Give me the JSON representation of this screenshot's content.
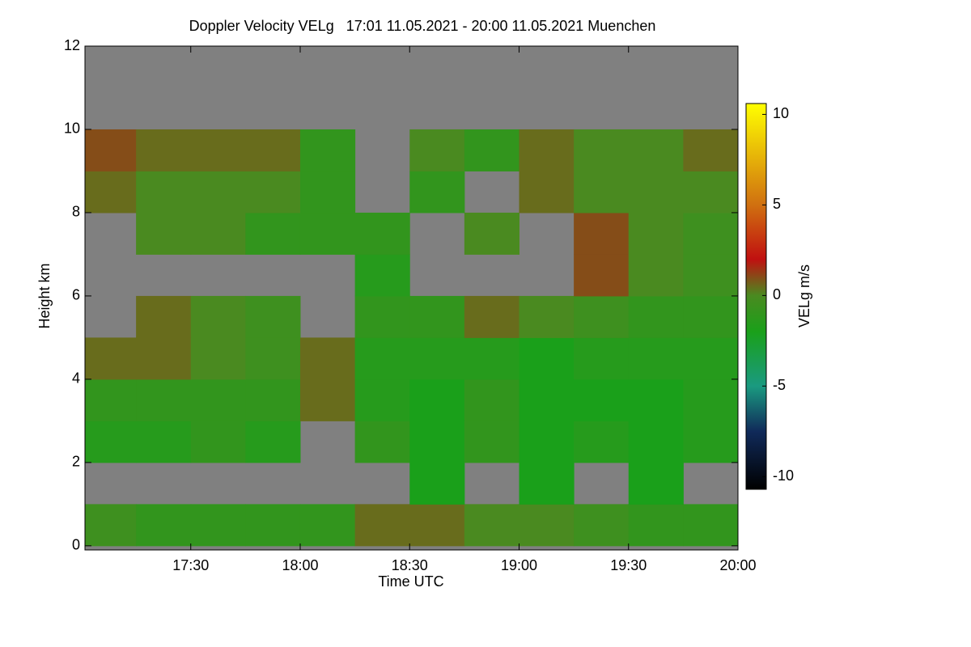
{
  "chart_data": {
    "type": "heatmap",
    "title": "Doppler Velocity VELg   17:01 11.05.2021 - 20:00 11.05.2021 Muenchen",
    "x_label": "Time UTC",
    "y_label": "Height km",
    "colorbar_label": "VELg m/s",
    "x_edges": [
      1021,
      1035,
      1050,
      1065,
      1080,
      1095,
      1110,
      1125,
      1140,
      1155,
      1170,
      1185,
      1200
    ],
    "y_edges": [
      0,
      1,
      2,
      3,
      4,
      5,
      6,
      7,
      8,
      9,
      10,
      11,
      12
    ],
    "z": [
      [
        -0.5,
        -1,
        -1,
        -1,
        -1,
        0.5,
        0.5,
        0,
        0,
        -0.5,
        -1,
        -1
      ],
      [
        null,
        null,
        null,
        null,
        null,
        null,
        -2,
        null,
        -2,
        null,
        -2,
        null
      ],
      [
        -1.5,
        -1.5,
        -1,
        -1.5,
        null,
        -1,
        -2,
        -1,
        -2,
        -1.5,
        -2,
        -1.5
      ],
      [
        -1,
        -1,
        -1,
        -1,
        0.5,
        -1.5,
        -2,
        -1,
        -2,
        -2,
        -2,
        -1.5
      ],
      [
        0.5,
        0.5,
        0,
        -0.5,
        0.5,
        -1.5,
        -1.5,
        -1.5,
        -2,
        -1.5,
        -1.5,
        -1.5
      ],
      [
        null,
        0.5,
        0,
        -0.5,
        null,
        -1,
        -1,
        0.5,
        0,
        -0.5,
        -1,
        -1
      ],
      [
        null,
        null,
        null,
        null,
        null,
        -1.5,
        null,
        null,
        null,
        1,
        0,
        -0.5
      ],
      [
        null,
        0,
        0,
        -1,
        -1,
        -1,
        null,
        0,
        null,
        1,
        0,
        -0.5
      ],
      [
        0.5,
        0,
        0,
        0,
        -1,
        null,
        -1,
        null,
        0.5,
        0,
        0,
        0
      ],
      [
        1,
        0.5,
        0.5,
        0.5,
        -1,
        null,
        0,
        -1,
        0.5,
        0,
        0,
        0.5
      ],
      [
        null,
        null,
        null,
        null,
        null,
        null,
        null,
        null,
        null,
        null,
        null,
        null
      ],
      [
        null,
        null,
        null,
        null,
        null,
        null,
        null,
        null,
        null,
        null,
        null,
        null
      ]
    ],
    "xlim": [
      1021,
      1200
    ],
    "ylim": [
      -0.1,
      12
    ],
    "xticks": [
      {
        "value": 1050,
        "label": "17:30"
      },
      {
        "value": 1080,
        "label": "18:00"
      },
      {
        "value": 1110,
        "label": "18:30"
      },
      {
        "value": 1140,
        "label": "19:00"
      },
      {
        "value": 1170,
        "label": "19:30"
      },
      {
        "value": 1200,
        "label": "20:00"
      }
    ],
    "yticks": [
      0,
      2,
      4,
      6,
      8,
      10,
      12
    ],
    "clim": [
      -10.7,
      10.6
    ],
    "cticks": [
      -10,
      -5,
      0,
      5,
      10
    ],
    "missing_color": "#808080",
    "colormap": [
      [
        -10.7,
        "#000000"
      ],
      [
        -7.5,
        "#102a5a"
      ],
      [
        -5,
        "#1a9a80"
      ],
      [
        -2,
        "#1aa01a"
      ],
      [
        0,
        "#4a8a20"
      ],
      [
        2,
        "#c01010"
      ],
      [
        5,
        "#d07010"
      ],
      [
        10.6,
        "#ffff00"
      ]
    ]
  }
}
